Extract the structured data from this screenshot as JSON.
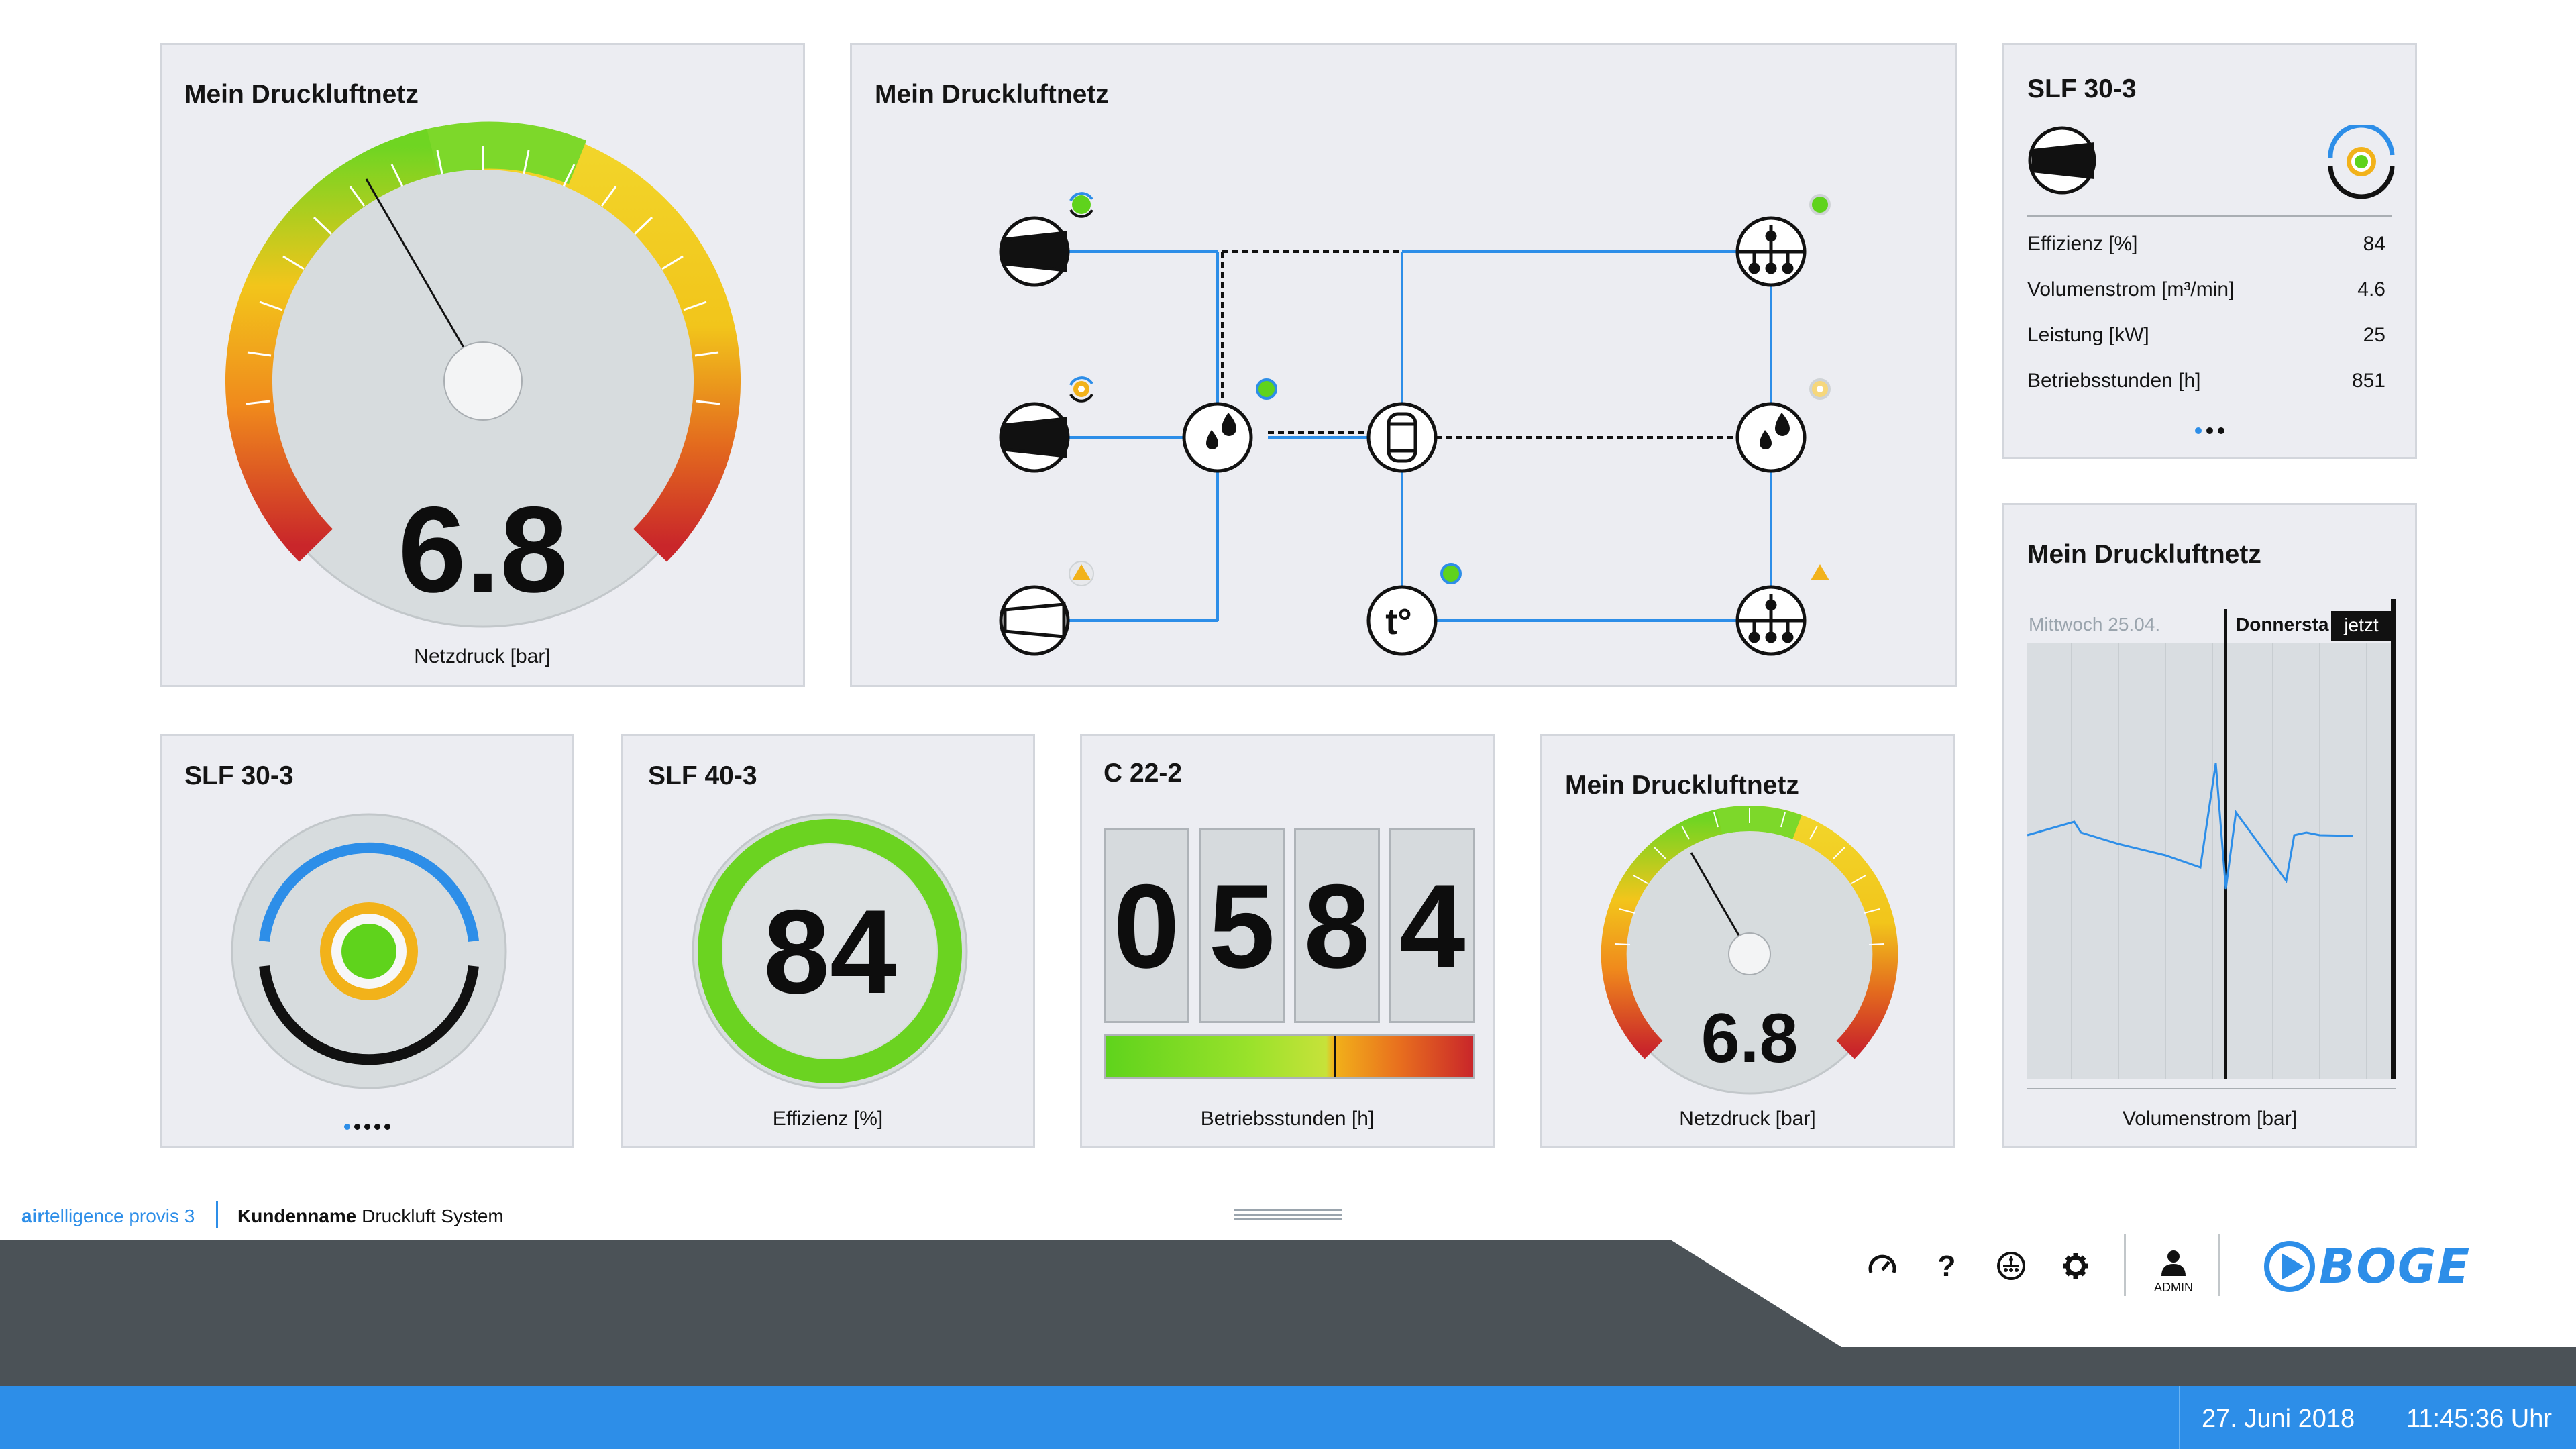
{
  "gauge_main": {
    "title": "Mein Druckluftnetz",
    "value": "6.8",
    "caption": "Netzdruck [bar]"
  },
  "network": {
    "title": "Mein Druckluftnetz",
    "nodes": [
      {
        "name": "compressor-1",
        "icon": "compressor-icon",
        "status": "ok"
      },
      {
        "name": "compressor-2",
        "icon": "compressor-icon",
        "status": "standby"
      },
      {
        "name": "compressor-3",
        "icon": "compressor-icon",
        "status": "warning"
      },
      {
        "name": "filter-1",
        "icon": "filter-icon",
        "status": "ok"
      },
      {
        "name": "tank",
        "icon": "tank-icon"
      },
      {
        "name": "temperature",
        "icon": "temperature-icon",
        "label": "t°",
        "status": "ok"
      },
      {
        "name": "consumer-1",
        "icon": "distributor-icon",
        "status": "ok"
      },
      {
        "name": "filter-2",
        "icon": "filter-icon",
        "status": "standby"
      },
      {
        "name": "consumer-2",
        "icon": "distributor-icon",
        "status": "warning"
      }
    ]
  },
  "slf_detail": {
    "title": "SLF 30-3",
    "rows": [
      {
        "label": "Effizienz [%]",
        "value": "84"
      },
      {
        "label": "Volumenstrom [m³/min]",
        "value": "4.6"
      },
      {
        "label": "Leistung [kW]",
        "value": "25"
      },
      {
        "label": "Betriebsstunden [h]",
        "value": "851"
      }
    ],
    "pager": {
      "count": 3,
      "active": 0
    }
  },
  "status_card": {
    "title": "SLF 30-3",
    "pager": {
      "count": 5,
      "active": 0
    }
  },
  "efficiency_card": {
    "title": "SLF 40-3",
    "value": "84",
    "caption": "Effizienz [%]",
    "fraction": 0.84
  },
  "hours_card": {
    "title": "C 22-2",
    "digits": [
      "0",
      "5",
      "8",
      "4"
    ],
    "caption": "Betriebsstunden [h]",
    "level": 0.62
  },
  "gauge_small": {
    "title": "Mein Druckluftnetz",
    "value": "6.8",
    "caption": "Netzdruck [bar]"
  },
  "trend": {
    "title": "Mein Druckluftnetz",
    "day1": "Mittwoch 25.04.",
    "day2": "Donnersta",
    "now": "jetzt",
    "caption": "Volumenstrom [bar]"
  },
  "footer": {
    "brand_accent": "air",
    "brand_rest": "telligence provis 3",
    "customer_bold": "Kundenname",
    "customer_rest": " Druckluft System",
    "user": "ADMIN",
    "logo": "BOGE",
    "date": "27. Juni 2018",
    "time": "11:45:36 Uhr",
    "icons": [
      "dashboard-icon",
      "help-icon",
      "network-icon",
      "settings-icon",
      "user-icon"
    ]
  },
  "colors": {
    "accent": "#2d8ee8",
    "dark_bar": "#4b5257",
    "green": "#5fd31c",
    "amber": "#f2b21a",
    "red": "#c9262a"
  }
}
